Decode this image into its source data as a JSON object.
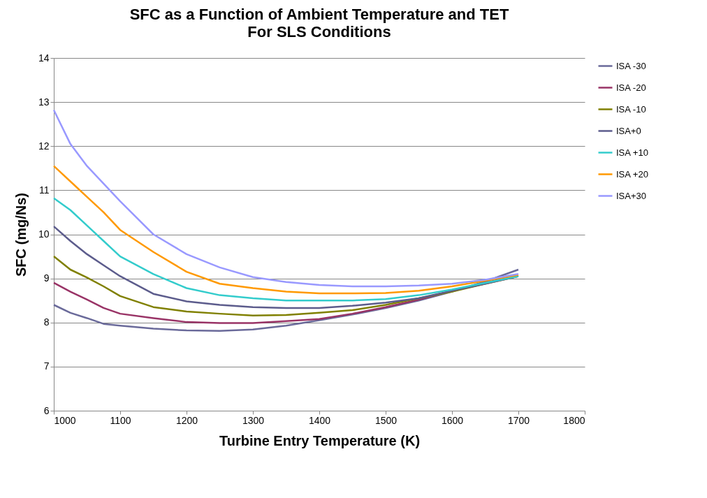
{
  "chart_data": {
    "type": "line",
    "title": "SFC as a Function of Ambient Temperature and TET",
    "subtitle": "For SLS Conditions",
    "xlabel": "Turbine Entry Temperature (K)",
    "ylabel": "SFC (mg/Ns)",
    "x": [
      1000,
      1025,
      1050,
      1075,
      1100,
      1150,
      1200,
      1250,
      1300,
      1350,
      1400,
      1450,
      1500,
      1550,
      1600,
      1650,
      1700
    ],
    "series": [
      {
        "name": "ISA -30",
        "color": "#6a6a9a",
        "values": [
          8.4,
          8.22,
          8.1,
          7.97,
          7.93,
          7.86,
          7.82,
          7.81,
          7.84,
          7.93,
          8.05,
          8.18,
          8.33,
          8.5,
          8.7,
          8.93,
          9.2
        ]
      },
      {
        "name": "ISA -20",
        "color": "#993366",
        "values": [
          8.9,
          8.7,
          8.52,
          8.33,
          8.2,
          8.1,
          8.01,
          7.99,
          7.99,
          8.03,
          8.08,
          8.2,
          8.35,
          8.52,
          8.72,
          8.9,
          9.08
        ]
      },
      {
        "name": "ISA -10",
        "color": "#808000",
        "values": [
          9.5,
          9.2,
          9.02,
          8.82,
          8.6,
          8.35,
          8.25,
          8.2,
          8.16,
          8.17,
          8.22,
          8.28,
          8.4,
          8.55,
          8.7,
          8.88,
          9.05
        ]
      },
      {
        "name": "ISA+0",
        "color": "#5c5c8c",
        "values": [
          10.18,
          9.85,
          9.55,
          9.3,
          9.05,
          8.65,
          8.48,
          8.4,
          8.35,
          8.33,
          8.33,
          8.38,
          8.45,
          8.55,
          8.72,
          8.88,
          9.05
        ]
      },
      {
        "name": "ISA +10",
        "color": "#33cccc",
        "values": [
          10.82,
          10.55,
          10.2,
          9.85,
          9.5,
          9.1,
          8.78,
          8.62,
          8.55,
          8.5,
          8.5,
          8.5,
          8.53,
          8.62,
          8.75,
          8.9,
          9.05
        ]
      },
      {
        "name": "ISA +20",
        "color": "#ff9900",
        "values": [
          11.55,
          11.2,
          10.85,
          10.5,
          10.1,
          9.6,
          9.15,
          8.88,
          8.78,
          8.7,
          8.66,
          8.66,
          8.67,
          8.72,
          8.82,
          8.95,
          9.08
        ]
      },
      {
        "name": "ISA+30",
        "color": "#9999ff",
        "values": [
          12.82,
          12.05,
          11.55,
          11.15,
          10.75,
          10.0,
          9.55,
          9.25,
          9.03,
          8.92,
          8.85,
          8.82,
          8.82,
          8.84,
          8.88,
          8.97,
          9.1
        ]
      }
    ],
    "xlim": [
      1000,
      1800
    ],
    "xticks": [
      1000,
      1100,
      1200,
      1300,
      1400,
      1500,
      1600,
      1700,
      1800
    ],
    "ylim": [
      6,
      14
    ],
    "yticks": [
      6,
      7,
      8,
      9,
      10,
      11,
      12,
      13,
      14
    ],
    "grid": "y",
    "legend": "right",
    "marker": "none",
    "line_style": "solid"
  }
}
